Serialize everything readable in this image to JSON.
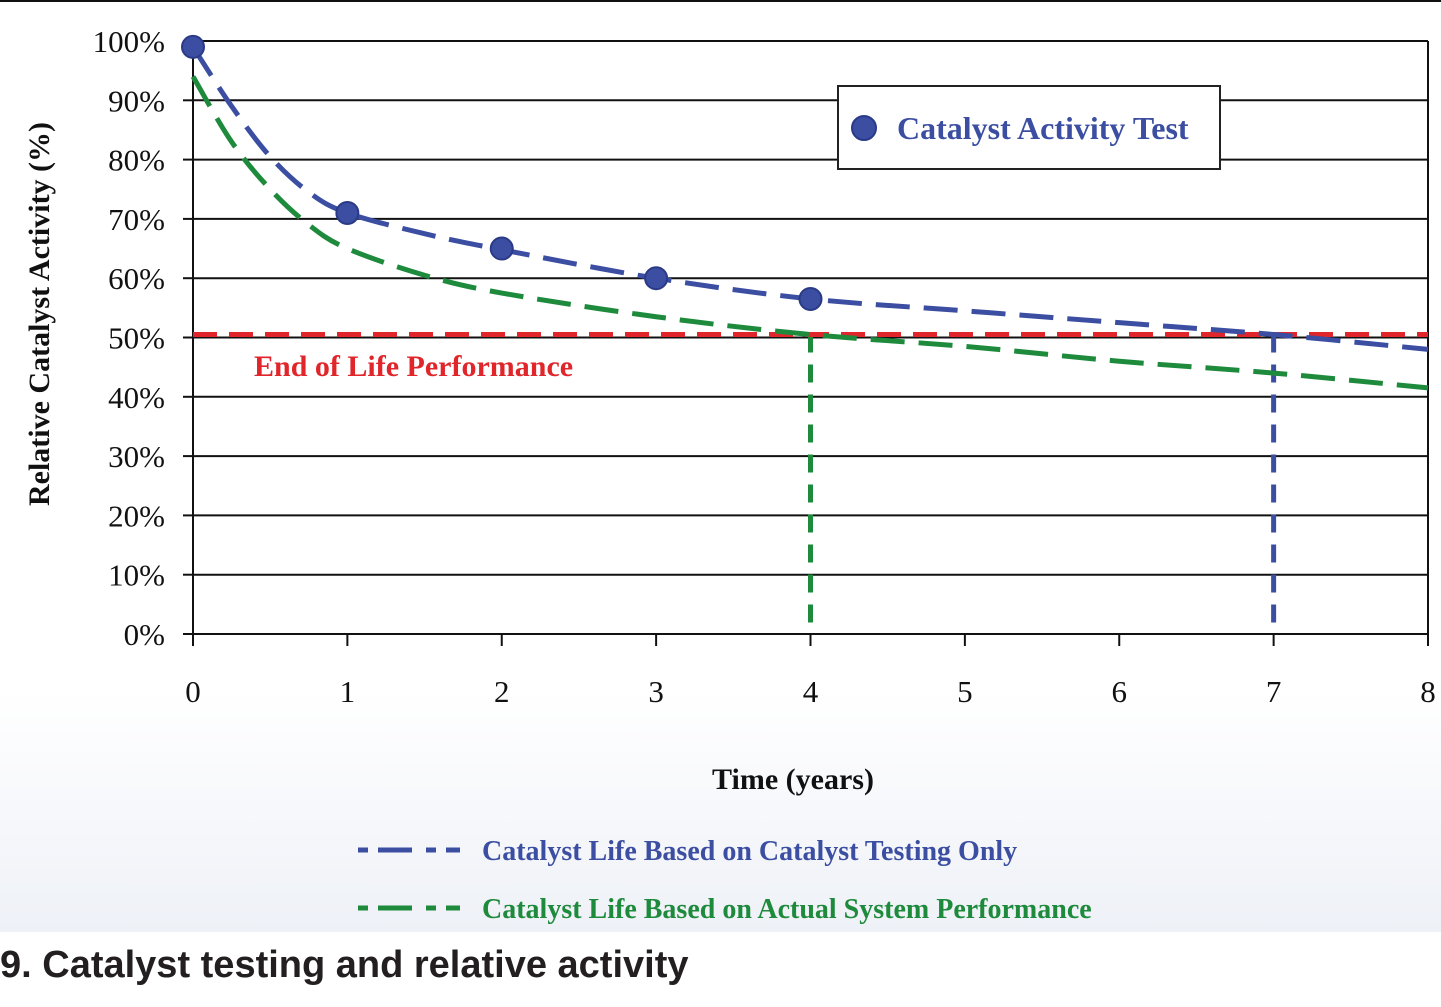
{
  "chart_data": {
    "type": "line",
    "xlabel": "Time (years)",
    "ylabel": "Relative Catalyst Activity (%)",
    "xlim": [
      0,
      8
    ],
    "ylim": [
      0,
      100
    ],
    "x_ticks": [
      "0",
      "1",
      "2",
      "3",
      "4",
      "5",
      "6",
      "7",
      "8"
    ],
    "y_ticks": [
      "0%",
      "10%",
      "20%",
      "30%",
      "40%",
      "50%",
      "60%",
      "70%",
      "80%",
      "90%",
      "100%"
    ],
    "grid": "horizontal",
    "series": [
      {
        "name": "Catalyst Activity Test",
        "kind": "scatter",
        "color": "#3b4ea2",
        "x": [
          0,
          1,
          2,
          3,
          4
        ],
        "y": [
          99,
          71,
          65,
          60,
          56.5
        ]
      },
      {
        "name": "Catalyst Life Based on Catalyst Testing Only",
        "kind": "dashed-line",
        "color": "#3b4ea2",
        "x": [
          0,
          0.25,
          0.5,
          0.75,
          1,
          1.5,
          2,
          3,
          4,
          5,
          6,
          7,
          8
        ],
        "y": [
          99,
          89,
          80.5,
          74.5,
          71,
          67.5,
          64.8,
          60,
          56.5,
          54.5,
          52.5,
          50.5,
          48
        ]
      },
      {
        "name": "Catalyst Life Based on Actual System Performance",
        "kind": "dashed-line",
        "color": "#1e8a3c",
        "x": [
          0,
          0.25,
          0.5,
          0.75,
          1,
          1.5,
          2,
          3,
          4,
          5,
          6,
          7,
          8
        ],
        "y": [
          94,
          83,
          75,
          69,
          65,
          60.5,
          57.5,
          53.5,
          50.5,
          48.5,
          46,
          44,
          41.5
        ]
      },
      {
        "name": "End of Life Performance",
        "kind": "reference-line",
        "color": "#e0262b",
        "y": 50.5
      }
    ],
    "vertical_markers": [
      {
        "x": 4,
        "color": "#1e8a3c"
      },
      {
        "x": 7,
        "color": "#3b4ea2"
      }
    ],
    "annotations": {
      "end_of_life": "End of Life Performance"
    },
    "legend_top": {
      "placement": "top-right",
      "label": "Catalyst Activity Test"
    },
    "legend_bottom": {
      "placement": "bottom",
      "items": [
        "Catalyst Life Based on Catalyst Testing Only",
        "Catalyst Life Based on Actual System Performance"
      ]
    }
  },
  "caption": "9. Catalyst testing and relative activity"
}
